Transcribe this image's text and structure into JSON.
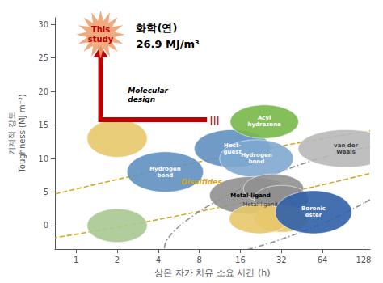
{
  "chart_data": {
    "type": "bubble",
    "log": "x",
    "grid": false,
    "xlabel": "상온 자가 치유 소요 시간 (h)",
    "ylabel": "기계적 강도\nToughness (MJ m⁻³)",
    "xlim": [
      0.699842,
      142.8894
    ],
    "xticks": [
      1,
      2,
      4,
      8,
      16,
      32,
      64,
      128
    ],
    "ylim": [
      -3.5,
      31
    ],
    "yticks": [
      0,
      5,
      10,
      15,
      20,
      25,
      30
    ],
    "bubbles": [
      {
        "x": 2.0,
        "y": 13.0,
        "x_radius_log": 0.22,
        "y_radius": 2.8,
        "color": "#e8c86a"
      },
      {
        "x": 2.0,
        "y": 0.0,
        "x_radius_log": 0.22,
        "y_radius": 2.5,
        "color": "#a8c890"
      },
      {
        "x": 4.5,
        "y": 8.0,
        "x_radius_log": 0.28,
        "y_radius": 3.0,
        "color": "#6090c0",
        "label": "Hydrogen\nbond",
        "label_color": "white"
      },
      {
        "x": 14.0,
        "y": 11.5,
        "x_radius_log": 0.28,
        "y_radius": 2.8,
        "color": "#6090c0",
        "label": "Host-\nguest",
        "label_color": "white"
      },
      {
        "x": 21.0,
        "y": 10.0,
        "x_radius_log": 0.27,
        "y_radius": 2.8,
        "color": "#80a8d0",
        "label": "Hydrogen\nbond",
        "label_color": "white"
      },
      {
        "x": 24.0,
        "y": 15.5,
        "x_radius_log": 0.25,
        "y_radius": 2.5,
        "color": "#78b848",
        "label": "Acyl\nhydrazone",
        "label_color": "white"
      },
      {
        "x": 19.0,
        "y": 4.5,
        "x_radius_log": 0.3,
        "y_radius": 2.8,
        "color": "#909090",
        "label": "Metal-ligand",
        "label_color": "black"
      },
      {
        "x": 28.0,
        "y": 5.5,
        "x_radius_log": 0.22,
        "y_radius": 2.2,
        "color": "#909090"
      },
      {
        "x": 32.0,
        "y": 4.0,
        "x_radius_log": 0.2,
        "y_radius": 2.0,
        "color": "#909090"
      },
      {
        "x": 32.0,
        "y": 1.0,
        "x_radius_log": 0.2,
        "y_radius": 2.0,
        "color": "#e8c86a"
      },
      {
        "x": 22.0,
        "y": 1.0,
        "x_radius_log": 0.22,
        "y_radius": 2.2,
        "color": "#e8c86a"
      },
      {
        "x": 55.0,
        "y": 2.0,
        "x_radius_log": 0.28,
        "y_radius": 3.2,
        "color": "#3060a8",
        "label": "Boronic\nester",
        "label_color": "white"
      },
      {
        "x": 95.0,
        "y": 11.5,
        "x_radius_log": 0.35,
        "y_radius": 2.8,
        "color": "#b8b8b8",
        "label": "van der\nWaals",
        "label_color": "#404040"
      }
    ],
    "ellipses": [
      {
        "center_x_log": 0.95,
        "center_y": 6.0,
        "x_radius_log": 0.82,
        "y_radius": 10.5,
        "angle": -12,
        "color": "#d4a820",
        "line_style": "dashed"
      },
      {
        "center_x_log": 1.57,
        "center_y": 3.5,
        "x_radius_log": 0.55,
        "y_radius": 8.5,
        "angle": -5,
        "color": "#909090",
        "line_style": "dashdot"
      }
    ],
    "disulfides_label": {
      "text": "Disulfides",
      "x_log": 0.92,
      "y": 6.5,
      "color": "#d4a820"
    },
    "metal_label": {
      "text": "Metal-ligand",
      "x_log": 1.35,
      "y": 3.8,
      "color": "#404040"
    },
    "mol_design_label": {
      "text": "Molecular\ndesign",
      "x_log": 0.38,
      "y": 19.5
    },
    "arrow": {
      "color": "#c00000",
      "x_start_log": 0.18,
      "x_end_log": 0.96,
      "y_horizontal": 15.8,
      "y_top": 26.8
    },
    "triple_bar": {
      "text": "|||",
      "x_log": 0.98,
      "y": 15.8
    },
    "star": {
      "text": "This\nstudy",
      "x_log": 0.18,
      "y": 28.5,
      "color": "#f0a070"
    },
    "annotation": {
      "title": "화학(연)",
      "value": "26.9 MJ/m³",
      "x_log": 0.44,
      "y_title": 30.2,
      "y_value": 27.8
    }
  }
}
